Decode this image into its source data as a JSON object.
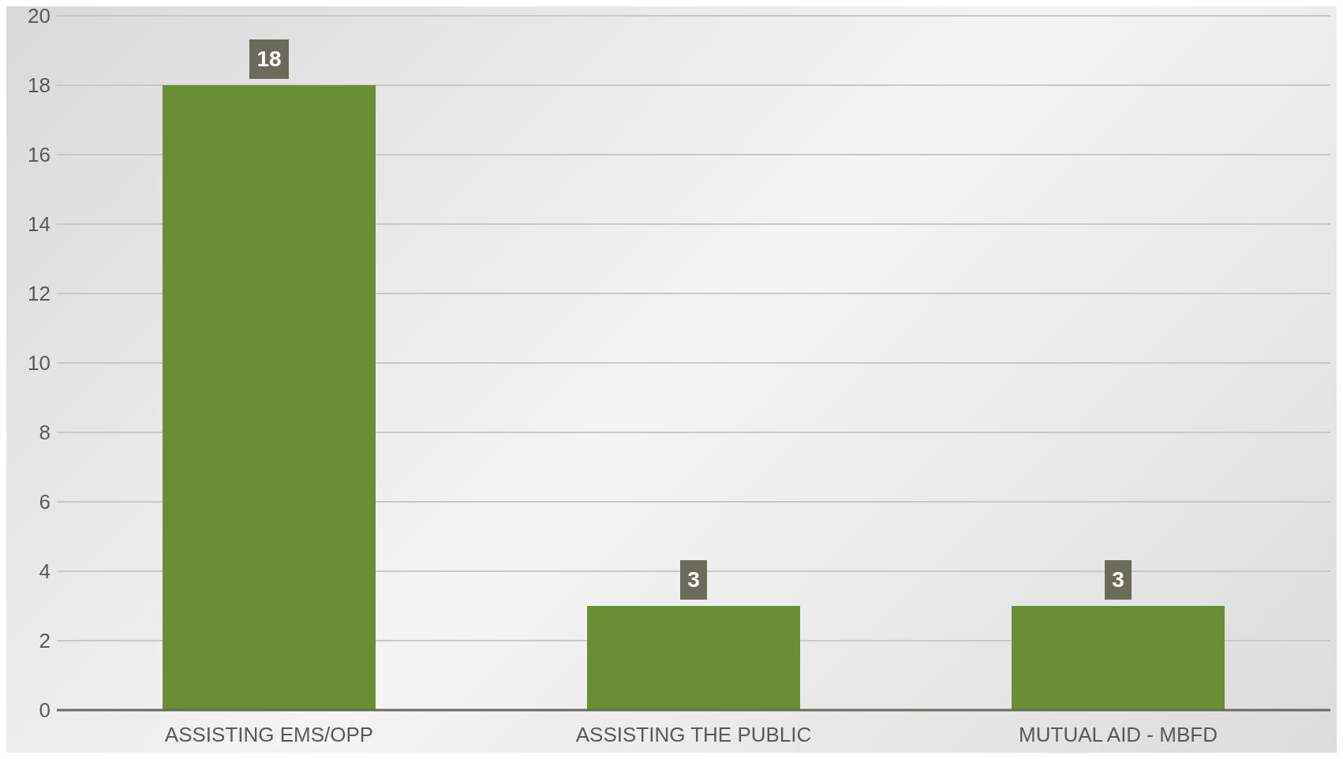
{
  "chart_data": {
    "type": "bar",
    "categories": [
      "ASSISTING EMS/OPP",
      "ASSISTING THE PUBLIC",
      "MUTUAL AID - MBFD"
    ],
    "values": [
      18,
      3,
      3
    ],
    "color": "#6a8e35",
    "ylim": [
      0,
      20
    ],
    "yticks": [
      0,
      2,
      4,
      6,
      8,
      10,
      12,
      14,
      16,
      18,
      20
    ],
    "grid": "y",
    "data_labels": true
  }
}
